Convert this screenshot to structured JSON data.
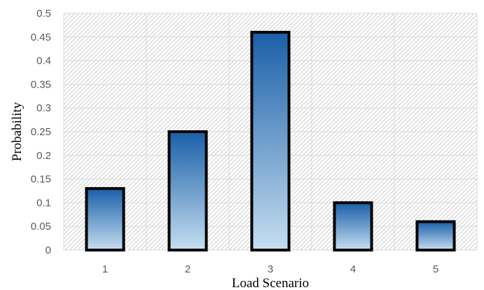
{
  "chart_data": {
    "type": "bar",
    "title": "",
    "xlabel": "Load Scenario",
    "ylabel": "Probability",
    "categories": [
      "1",
      "2",
      "3",
      "4",
      "5"
    ],
    "values": [
      0.13,
      0.25,
      0.46,
      0.1,
      0.06
    ],
    "ylim": [
      0,
      0.5
    ],
    "yticks": [
      "0",
      "0.05",
      "0.1",
      "0.15",
      "0.2",
      "0.25",
      "0.3",
      "0.35",
      "0.4",
      "0.45",
      "0.5"
    ],
    "grid": true,
    "legend": "none",
    "colors": {
      "bar_top": "#1a5fa8",
      "bar_bottom": "#c6def1",
      "bar_outline": "#000000",
      "grid": "#d9d9d9",
      "plot_hatch": "#cfcfcf"
    }
  }
}
